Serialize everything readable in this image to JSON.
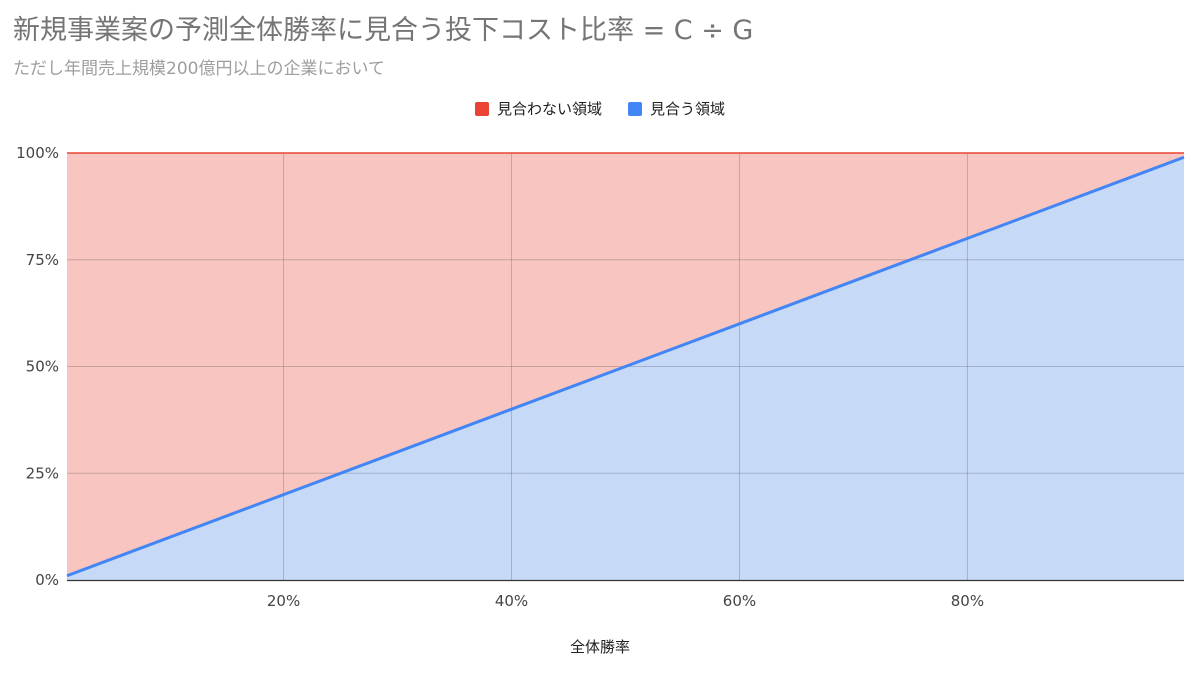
{
  "chart_data": {
    "type": "area",
    "title": "新規事業案の予測全体勝率に見合う投下コスト比率 = C ÷ G",
    "subtitle": "ただし年間売上規模200億円以上の企業において",
    "xlabel": "全体勝率",
    "ylabel": "",
    "xlim": [
      0.01,
      0.99
    ],
    "ylim": [
      0,
      1
    ],
    "x_ticks": [
      0.2,
      0.4,
      0.6,
      0.8
    ],
    "x_tick_labels": [
      "20%",
      "40%",
      "60%",
      "80%"
    ],
    "y_ticks": [
      0,
      0.25,
      0.5,
      0.75,
      1
    ],
    "y_tick_labels": [
      "0%",
      "25%",
      "50%",
      "75%",
      "100%"
    ],
    "grid": true,
    "legend_position": "top",
    "x": [
      0.01,
      0.2,
      0.4,
      0.6,
      0.8,
      0.99
    ],
    "series": [
      {
        "name": "見合わない領域",
        "values": [
          0.99,
          0.8,
          0.6,
          0.4,
          0.2,
          0.01
        ],
        "color": "#ea4335",
        "fill": "#f8c5c1"
      },
      {
        "name": "見合う領域",
        "values": [
          0.01,
          0.2,
          0.4,
          0.6,
          0.8,
          0.99
        ],
        "color": "#4285f4",
        "fill": "#c6d9f7"
      }
    ]
  }
}
